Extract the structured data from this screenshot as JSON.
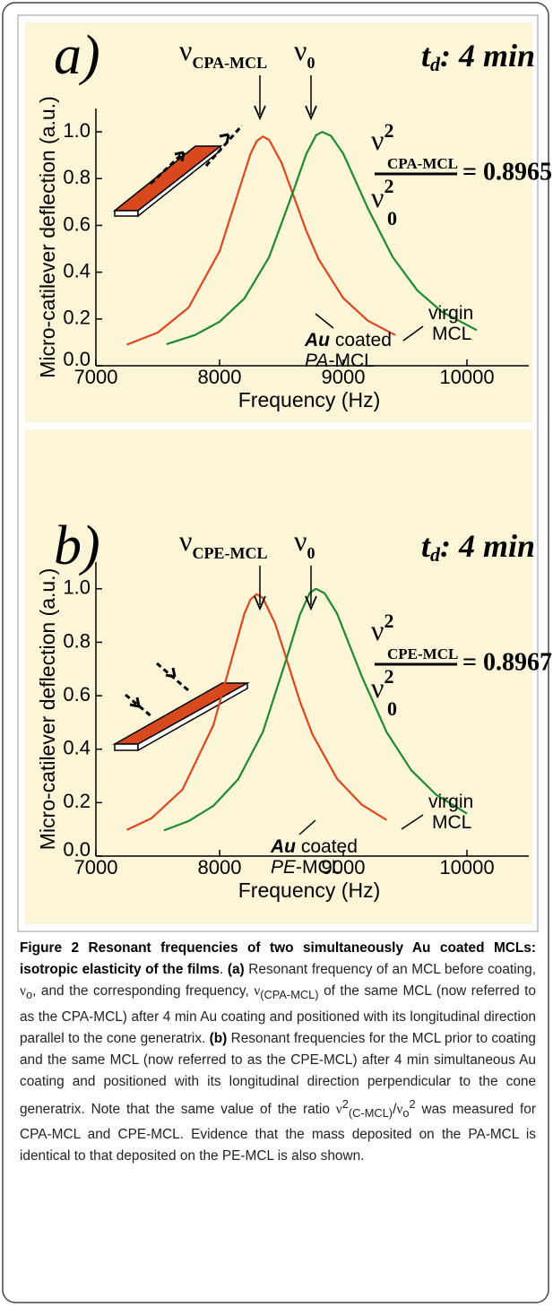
{
  "charts": [
    {
      "type": "line",
      "title": "a)",
      "peak_labels": [
        {
          "symbol": "ν",
          "subscript": "CPA-MCL"
        },
        {
          "symbol": "ν",
          "subscript": "0"
        }
      ],
      "time_label": {
        "symbol": "t",
        "subscript": "d",
        "text": ": 4 min"
      },
      "ratio": {
        "num_symbol": "ν",
        "num_sup": "2",
        "num_sub": "CPA-MCL",
        "den_symbol": "ν",
        "den_sup": "2",
        "den_sub": "0",
        "result": "= 0.8965"
      },
      "curve_labels": [
        [
          [
            "virgin"
          ],
          [
            "MCL"
          ]
        ],
        [
          [
            "Au",
            " coated"
          ],
          [
            "PA",
            "-MCL"
          ]
        ]
      ],
      "xlabel": "Frequency (Hz)",
      "ylabel": "Micro-catilever deflection (a.u.)",
      "xlim": [
        7000,
        10500
      ],
      "ylim": [
        0,
        1.1
      ],
      "xticks": [
        7000,
        8000,
        9000,
        10000
      ],
      "yticks": [
        {
          "value": 0,
          "label": "0.0"
        },
        0.2,
        0.4,
        0.6,
        0.8,
        {
          "value": 1,
          "label": "1.0"
        }
      ],
      "series": [
        {
          "color": "#e0461e",
          "x": [
            7250,
            7500,
            7750,
            8000,
            8150,
            8250,
            8300,
            8350,
            8400,
            8500,
            8600,
            8700,
            8800,
            9000,
            9200,
            9420
          ],
          "values": [
            0.09,
            0.142,
            0.249,
            0.49,
            0.74,
            0.906,
            0.96,
            0.98,
            0.966,
            0.869,
            0.724,
            0.578,
            0.456,
            0.289,
            0.192,
            0.131
          ]
        },
        {
          "color": "#1e8a2e",
          "x": [
            7570,
            7800,
            8000,
            8200,
            8400,
            8600,
            8700,
            8780,
            8830,
            8900,
            9000,
            9200,
            9400,
            9600,
            9800,
            10080
          ],
          "values": [
            0.092,
            0.131,
            0.188,
            0.287,
            0.464,
            0.752,
            0.904,
            0.985,
            1.0,
            0.983,
            0.907,
            0.672,
            0.464,
            0.321,
            0.23,
            0.152
          ]
        }
      ]
    },
    {
      "type": "line",
      "title": "b)",
      "peak_labels": [
        {
          "symbol": "ν",
          "subscript": "CPE-MCL"
        },
        {
          "symbol": "ν",
          "subscript": "0"
        }
      ],
      "time_label": {
        "symbol": "t",
        "subscript": "d",
        "text": ": 4 min"
      },
      "ratio": {
        "num_symbol": "ν",
        "num_sup": "2",
        "num_sub": "CPE-MCL",
        "den_symbol": "ν",
        "den_sup": "2",
        "den_sub": "0",
        "result": "= 0.8967"
      },
      "curve_labels": [
        [
          [
            "virgin"
          ],
          [
            "MCL"
          ]
        ],
        [
          [
            "Au",
            " coated"
          ],
          [
            "PE",
            "-MCL"
          ]
        ]
      ],
      "xlabel": "Frequency (Hz)",
      "ylabel": "Micro-catilever deflection (a.u.)",
      "xlim": [
        7000,
        10500
      ],
      "ylim": [
        0,
        1.1
      ],
      "xticks": [
        7000,
        8000,
        9000,
        10000
      ],
      "yticks": [
        {
          "value": 0,
          "label": "0.0"
        },
        0.2,
        0.4,
        0.6,
        0.8,
        {
          "value": 1,
          "label": "1.0"
        }
      ],
      "series": [
        {
          "color": "#e0461e",
          "x": [
            7250,
            7450,
            7700,
            7950,
            8100,
            8200,
            8250,
            8300,
            8350,
            8450,
            8550,
            8650,
            8750,
            8950,
            9150,
            9350
          ],
          "values": [
            0.098,
            0.142,
            0.249,
            0.49,
            0.74,
            0.906,
            0.96,
            0.98,
            0.966,
            0.869,
            0.724,
            0.578,
            0.456,
            0.289,
            0.192,
            0.135
          ]
        },
        {
          "color": "#1e8a2e",
          "x": [
            7550,
            7750,
            7950,
            8150,
            8350,
            8550,
            8650,
            8730,
            8780,
            8850,
            8950,
            9150,
            9350,
            9550,
            9750,
            10000
          ],
          "values": [
            0.096,
            0.131,
            0.188,
            0.287,
            0.464,
            0.752,
            0.904,
            0.985,
            1.0,
            0.983,
            0.907,
            0.672,
            0.464,
            0.321,
            0.23,
            0.159
          ]
        }
      ]
    }
  ],
  "caption": {
    "segments": [
      "Figure 2 Resonant frequencies of two simultaneously Au coated MCLs: isotropic elasticity of the films",
      ". ",
      "(a)",
      " Resonant frequency of an MCL before coating, ",
      "ν",
      "o",
      ", and the corresponding frequency, ",
      "ν",
      "(CPA-MCL)",
      " of the same MCL (now referred to as the CPA-MCL) after 4 min Au coating and positioned with its longitudinal direction parallel to the cone generatrix. ",
      "(b)",
      " Resonant frequencies for the MCL prior to coating and the same MCL (now referred to as the CPE-MCL) after 4 min simultaneous Au coating and positioned with its longitudinal direction perpendicular to the cone generatrix. Note that the same value of the ratio ",
      "ν",
      "2",
      "(C-MCL)",
      "/",
      "ν",
      "o",
      "2",
      " was measured for CPA-MCL and CPE-MCL. Evidence that the mass deposited on the PA-MCL is identical to that deposited on the PE-MCL is also shown."
    ]
  }
}
